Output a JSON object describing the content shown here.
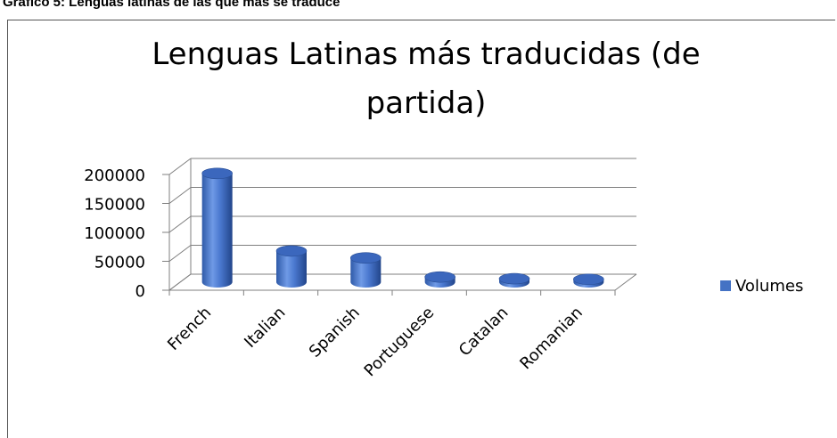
{
  "caption": "Gráfico 5: Lenguas latinas de las que más se traduce",
  "chart_data": {
    "type": "bar",
    "title_line1": "Lenguas Latinas más traducidas (de",
    "title_line2": "partida)",
    "categories": [
      "French",
      "Italian",
      "Spanish",
      "Portuguese",
      "Catalan",
      "Romanian"
    ],
    "series": [
      {
        "name": "Volumes",
        "values": [
          188000,
          54000,
          42000,
          9000,
          6000,
          5000
        ],
        "color": "#4472c4"
      }
    ],
    "y_ticks": [
      "0",
      "50000",
      "100000",
      "150000",
      "200000"
    ],
    "ylim": [
      0,
      200000
    ],
    "grid": true,
    "legend_position": "right"
  }
}
